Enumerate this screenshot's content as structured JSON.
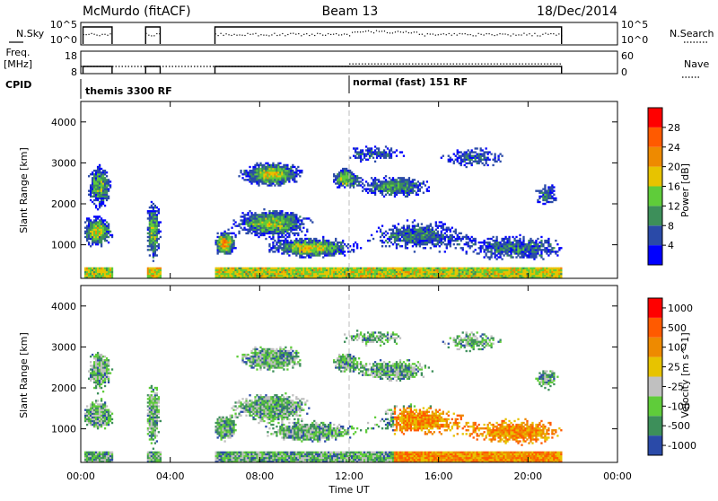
{
  "header": {
    "station": "McMurdo (fitACF)",
    "beam": "Beam 13",
    "date": "18/Dec/2014"
  },
  "side_labels": {
    "nsky": "N.Sky",
    "freq_line1": "Freq.",
    "freq_line2": "[MHz]",
    "cpid": "CPID",
    "nsearch": "N.Search",
    "nave": "Nave"
  },
  "cpid_modes": [
    {
      "label": "themis 3300 RF",
      "start_hour": 0.0
    },
    {
      "label": "normal (fast) 151 RF",
      "start_hour": 12.0
    }
  ],
  "colors": {
    "power": [
      "#0000ff",
      "#2a4aa8",
      "#3d8f5a",
      "#5fcc3a",
      "#e7c300",
      "#ee8a00",
      "#ff5a00",
      "#ff0000"
    ],
    "velocity": [
      "#ff0000",
      "#ff5a00",
      "#ee8a00",
      "#e7c300",
      "#c0c0c0",
      "#5fcc3a",
      "#3d8f5a",
      "#2a4aa8"
    ]
  },
  "chart_data": [
    {
      "type": "line",
      "panel": "N.Sky / N.Search",
      "ylabel_left": "N.Sky",
      "ylabel_right": "N.Search",
      "y_ticks_left": [
        "10^5",
        "10^0"
      ],
      "y_ticks_right": [
        "10^5",
        "10^0"
      ],
      "y_scale": "log",
      "xlim": [
        0,
        24
      ],
      "coverage_hours": [
        [
          0.1,
          1.4
        ],
        [
          2.9,
          3.55
        ],
        [
          6.0,
          21.5
        ]
      ]
    },
    {
      "type": "line",
      "panel": "Freq / Nave",
      "ylabel_left": "Freq. [MHz]",
      "ylabel_right": "Nave",
      "y_ticks_left": [
        "18",
        "8"
      ],
      "y_ticks_right": [
        "60",
        "0"
      ],
      "freq_mhz": 11,
      "nave_levels": [
        {
          "from": 0,
          "to": 12,
          "value": 20
        },
        {
          "from": 12,
          "to": 21.5,
          "value": 27
        }
      ],
      "xlim": [
        0,
        24
      ]
    },
    {
      "type": "heatmap",
      "panel": "Power",
      "ylabel": "Slant Range [km]",
      "y_ticks": [
        1000,
        2000,
        3000,
        4000
      ],
      "ylim": [
        180,
        4500
      ],
      "xlim": [
        0,
        24
      ],
      "colorbar_label": "Power [dB]",
      "colorbar_ticks": [
        4,
        8,
        12,
        16,
        20,
        24,
        28
      ],
      "colorbar_range": [
        0,
        32
      ]
    },
    {
      "type": "heatmap",
      "panel": "Velocity",
      "ylabel": "Slant Range [km]",
      "y_ticks": [
        1000,
        2000,
        3000,
        4000
      ],
      "ylim": [
        180,
        4500
      ],
      "xlim": [
        0,
        24
      ],
      "colorbar_label": "Velocity [m s^-1]",
      "colorbar_ticks": [
        "1000",
        "500",
        "100",
        "25",
        "-25",
        "-100",
        "-500",
        "-1000"
      ]
    }
  ],
  "x_axis": {
    "tick_labels": [
      "00:00",
      "04:00",
      "08:00",
      "12:00",
      "16:00",
      "20:00",
      "00:00"
    ],
    "tick_hours": [
      0,
      4,
      8,
      12,
      16,
      20,
      24
    ],
    "label": "Time UT"
  }
}
